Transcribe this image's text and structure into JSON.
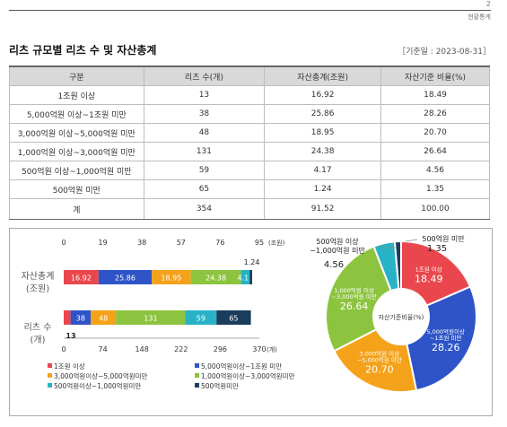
{
  "header": {
    "page_number": "2",
    "section": "현황통계"
  },
  "title": "리츠 규모별 리츠 수 및 자산총계",
  "as_of": "［기준일 : 2023-08-31］",
  "table": {
    "headers": [
      "구분",
      "리츠 수(개)",
      "자산총계(조원)",
      "자산기준 비율(%)"
    ],
    "rows": [
      [
        "1조원 이상",
        "13",
        "16.92",
        "18.49"
      ],
      [
        "5,000억원 이상~1조원 미만",
        "38",
        "25.86",
        "28.26"
      ],
      [
        "3,000억원 이상~5,000억원 미만",
        "48",
        "18.95",
        "20.70"
      ],
      [
        "1,000억원 이상~3,000억원 미만",
        "131",
        "24.38",
        "26.64"
      ],
      [
        "500억원 이상~1,000억원 미만",
        "59",
        "4.17",
        "4.56"
      ],
      [
        "500억원 미만",
        "65",
        "1.24",
        "1.35"
      ]
    ],
    "total": [
      "계",
      "354",
      "91.52",
      "100.00"
    ]
  },
  "chart_data": [
    {
      "type": "bar",
      "orientation": "horizontal-stacked",
      "categories": [
        "자산총계\n(조원)",
        "리츠 수\n(개)"
      ],
      "top_axis": {
        "ticks": [
          "0",
          "19",
          "38",
          "57",
          "76",
          "95"
        ],
        "unit": "(조원)",
        "max": 95
      },
      "bottom_axis": {
        "ticks": [
          "0",
          "74",
          "148",
          "222",
          "296",
          "370"
        ],
        "unit": "(개)",
        "max": 370
      },
      "series": [
        {
          "name": "1조원 이상",
          "color": "#e9474d",
          "asset": 16.92,
          "count": 13,
          "asset_label": "16.92",
          "count_label": "13"
        },
        {
          "name": "5,000억원이상~1조원 미만",
          "color": "#2e54c8",
          "asset": 25.86,
          "count": 38,
          "asset_label": "25.86",
          "count_label": "38"
        },
        {
          "name": "3,000억원이상~5,000억원미만",
          "color": "#f5a21b",
          "asset": 18.95,
          "count": 48,
          "asset_label": "18.95",
          "count_label": "48"
        },
        {
          "name": "1,000억원이상~3,000억원미만",
          "color": "#8dc43f",
          "asset": 24.38,
          "count": 131,
          "asset_label": "24.38",
          "count_label": "131"
        },
        {
          "name": "500억원이상~1,000억원미만",
          "color": "#27b3c5",
          "asset": 4.17,
          "count": 59,
          "asset_label": "4.17",
          "count_label": "59"
        },
        {
          "name": "500억원미만",
          "color": "#1b3d5c",
          "asset": 1.24,
          "count": 65,
          "asset_label": "1.24",
          "count_label": "65"
        }
      ]
    },
    {
      "type": "pie",
      "center_label": "자산기준비율(%)",
      "slices": [
        {
          "name": "1조원 이상",
          "value": 18.49,
          "label": "18.49",
          "color": "#e9474d"
        },
        {
          "name": "5,000억원이상\n~1조원 미만",
          "value": 28.26,
          "label": "28.26",
          "color": "#2e54c8"
        },
        {
          "name": "3,000억원 이상\n~5,000억원 미만",
          "value": 20.7,
          "label": "20.70",
          "color": "#f5a21b"
        },
        {
          "name": "1,000억원 이상\n~3,000억원 미만",
          "value": 26.64,
          "label": "26.64",
          "color": "#8dc43f"
        },
        {
          "name": "500억원 이상\n~1,000억원 미만",
          "value": 4.56,
          "label": "4.56",
          "color": "#27b3c5"
        },
        {
          "name": "500억원 미만",
          "value": 1.35,
          "label": "1.35",
          "color": "#1b3d5c"
        }
      ]
    }
  ]
}
